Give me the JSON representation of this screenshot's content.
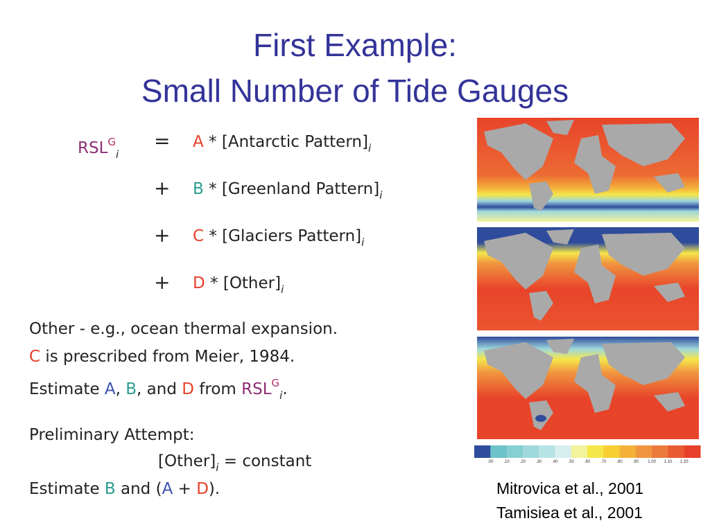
{
  "title": [
    "First Example:",
    "Small Number of Tide Gauges"
  ],
  "equation": {
    "lhs": [
      {
        "text": "RSL",
        "color": "#8e2f74"
      },
      {
        "text": "G",
        "color": "#b0306a",
        "style": "sup"
      },
      {
        "text": "i",
        "style": "sub"
      }
    ],
    "rows": [
      {
        "op": "=",
        "segments": [
          {
            "text": "A",
            "color": "#e8402a"
          },
          {
            "text": " * [Antarctic Pattern]"
          },
          {
            "text": "i",
            "style": "sub"
          }
        ]
      },
      {
        "op": "+",
        "segments": [
          {
            "text": "B",
            "color": "#2a9d8f"
          },
          {
            "text": " * [Greenland Pattern]"
          },
          {
            "text": "i",
            "style": "sub"
          }
        ]
      },
      {
        "op": "+",
        "segments": [
          {
            "text": "C",
            "color": "#e8402a"
          },
          {
            "text": " * [Glaciers Pattern]"
          },
          {
            "text": "i",
            "style": "sub"
          }
        ]
      },
      {
        "op": "+",
        "segments": [
          {
            "text": "D",
            "color": "#e8402a"
          },
          {
            "text": " * [Other]"
          },
          {
            "text": "i",
            "style": "sub"
          }
        ]
      }
    ]
  },
  "notes": [
    [
      {
        "text": "Other - e.g., ocean thermal expansion."
      }
    ],
    [
      {
        "text": "C",
        "color": "#e8402a"
      },
      {
        "text": " is prescribed from Meier, 1984."
      }
    ],
    [
      {
        "text": "Estimate "
      },
      {
        "text": "A",
        "color": "#3b4fb0"
      },
      {
        "text": ", "
      },
      {
        "text": "B",
        "color": "#2a9d8f"
      },
      {
        "text": ", and "
      },
      {
        "text": "D",
        "color": "#e8402a"
      },
      {
        "text": " from "
      },
      {
        "text": "RSL",
        "color": "#8e2f74"
      },
      {
        "text": "G",
        "color": "#b0306a",
        "style": "sup"
      },
      {
        "text": "i",
        "style": "sub"
      },
      {
        "text": "."
      }
    ]
  ],
  "attempt": [
    [
      {
        "text": "Preliminary Attempt:"
      }
    ],
    [
      {
        "text": "[Other]"
      },
      {
        "text": "i",
        "style": "sub"
      },
      {
        "text": " = constant"
      }
    ],
    [
      {
        "text": "Estimate "
      },
      {
        "text": "B",
        "color": "#2a9d8f"
      },
      {
        "text": " and ("
      },
      {
        "text": "A",
        "color": "#3b4fb0"
      },
      {
        "text": " + "
      },
      {
        "text": "D",
        "color": "#e8402a"
      },
      {
        "text": ")."
      }
    ]
  ],
  "colorbar": {
    "labels": [
      ".00",
      ".10",
      ".20",
      ".30",
      ".40",
      ".50",
      ".60",
      ".70",
      ".80",
      ".90",
      "1.00",
      "1.10",
      "1.20"
    ],
    "colors": [
      "#2f4c9c",
      "#6cc3c9",
      "#86cfd3",
      "#9fd8dc",
      "#b8e3e5",
      "#d6efef",
      "#f2f39a",
      "#f5e74a",
      "#f7cf33",
      "#f4b23a",
      "#f09640",
      "#ec7a3c",
      "#e95a32",
      "#e6402a"
    ]
  },
  "references": [
    "Mitrovica et al., 2001",
    "Tamisiea et al., 2001"
  ]
}
